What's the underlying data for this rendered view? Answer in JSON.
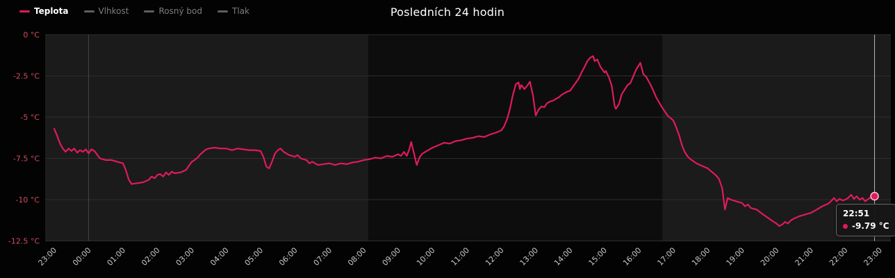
{
  "title": "Posledních 24 hodin",
  "legend": {
    "items": [
      {
        "label": "Teplota",
        "color": "#e01a5f",
        "active": true
      },
      {
        "label": "Vlhkost",
        "color": "#5f5f5f",
        "active": false
      },
      {
        "label": "Rosný bod",
        "color": "#5f5f5f",
        "active": false
      },
      {
        "label": "Tlak",
        "color": "#5f5f5f",
        "active": false
      }
    ]
  },
  "tooltip": {
    "time": "22:51",
    "value": "-9.79 °C"
  },
  "colors": {
    "series": "#e01a5f",
    "y_label": "#d14b5f",
    "x_label": "#c9c9c9",
    "grid": "#2e2e2e",
    "midnight_line": "#444444",
    "crosshair": "#d6d6d6",
    "marker_rim": "#ffc2d4",
    "plot_background": "#0d0d0d",
    "plot_band": "#1b1b1b"
  },
  "chart_data": {
    "type": "line",
    "title": "Posledních 24 hodin",
    "xlabel": "",
    "ylabel": "°C",
    "ylim": [
      -12.5,
      0
    ],
    "x_range_hours": [
      -0.263,
      24.323
    ],
    "x_start_label_time": "23:00",
    "x_ticks": [
      "23:00",
      "00:00",
      "01:00",
      "02:00",
      "03:00",
      "04:00",
      "05:00",
      "06:00",
      "07:00",
      "08:00",
      "09:00",
      "10:00",
      "11:00",
      "12:00",
      "13:00",
      "14:00",
      "15:00",
      "16:00",
      "17:00",
      "18:00",
      "19:00",
      "20:00",
      "21:00",
      "22:00",
      "23:00"
    ],
    "y_ticks": [
      {
        "value": 0,
        "label": "0 °C"
      },
      {
        "value": -2.5,
        "label": "-2.5 °C"
      },
      {
        "value": -5,
        "label": "-5 °C"
      },
      {
        "value": -7.5,
        "label": "-7.5 °C"
      },
      {
        "value": -10,
        "label": "-10 °C"
      },
      {
        "value": -12.5,
        "label": "-12.5 °C"
      }
    ],
    "plot_bands": [
      {
        "from": -0.263,
        "to": 9.13
      },
      {
        "from": 17.68,
        "to": 24.323
      }
    ],
    "midnight_gridline_hour": 1,
    "crosshair_hour": 23.85,
    "marker": {
      "hour": 23.85,
      "value": -9.79
    },
    "series": [
      {
        "name": "Teplota",
        "points": [
          [
            0.0,
            -5.7
          ],
          [
            0.08,
            -6.1
          ],
          [
            0.17,
            -6.6
          ],
          [
            0.25,
            -6.9
          ],
          [
            0.33,
            -7.1
          ],
          [
            0.42,
            -6.9
          ],
          [
            0.5,
            -7.05
          ],
          [
            0.58,
            -6.9
          ],
          [
            0.67,
            -7.15
          ],
          [
            0.75,
            -7.0
          ],
          [
            0.83,
            -7.1
          ],
          [
            0.92,
            -6.95
          ],
          [
            1.0,
            -7.2
          ],
          [
            1.08,
            -6.95
          ],
          [
            1.17,
            -7.05
          ],
          [
            1.33,
            -7.5
          ],
          [
            1.5,
            -7.6
          ],
          [
            1.67,
            -7.6
          ],
          [
            1.83,
            -7.7
          ],
          [
            2.0,
            -7.8
          ],
          [
            2.08,
            -8.2
          ],
          [
            2.17,
            -8.8
          ],
          [
            2.25,
            -9.05
          ],
          [
            2.42,
            -9.0
          ],
          [
            2.58,
            -8.95
          ],
          [
            2.75,
            -8.8
          ],
          [
            2.83,
            -8.6
          ],
          [
            2.92,
            -8.7
          ],
          [
            3.0,
            -8.5
          ],
          [
            3.08,
            -8.45
          ],
          [
            3.17,
            -8.6
          ],
          [
            3.25,
            -8.35
          ],
          [
            3.33,
            -8.5
          ],
          [
            3.42,
            -8.3
          ],
          [
            3.5,
            -8.4
          ],
          [
            3.67,
            -8.35
          ],
          [
            3.83,
            -8.2
          ],
          [
            4.0,
            -7.7
          ],
          [
            4.08,
            -7.6
          ],
          [
            4.17,
            -7.45
          ],
          [
            4.25,
            -7.25
          ],
          [
            4.33,
            -7.1
          ],
          [
            4.42,
            -6.95
          ],
          [
            4.5,
            -6.9
          ],
          [
            4.67,
            -6.85
          ],
          [
            4.83,
            -6.9
          ],
          [
            5.0,
            -6.9
          ],
          [
            5.17,
            -7.0
          ],
          [
            5.33,
            -6.9
          ],
          [
            5.5,
            -6.95
          ],
          [
            5.67,
            -7.0
          ],
          [
            5.83,
            -7.0
          ],
          [
            6.0,
            -7.05
          ],
          [
            6.08,
            -7.4
          ],
          [
            6.17,
            -8.0
          ],
          [
            6.25,
            -8.1
          ],
          [
            6.33,
            -7.7
          ],
          [
            6.42,
            -7.2
          ],
          [
            6.5,
            -7.0
          ],
          [
            6.58,
            -6.9
          ],
          [
            6.67,
            -7.1
          ],
          [
            6.83,
            -7.3
          ],
          [
            7.0,
            -7.4
          ],
          [
            7.08,
            -7.3
          ],
          [
            7.17,
            -7.5
          ],
          [
            7.33,
            -7.6
          ],
          [
            7.42,
            -7.8
          ],
          [
            7.5,
            -7.7
          ],
          [
            7.67,
            -7.9
          ],
          [
            7.83,
            -7.85
          ],
          [
            8.0,
            -7.8
          ],
          [
            8.17,
            -7.9
          ],
          [
            8.33,
            -7.8
          ],
          [
            8.5,
            -7.85
          ],
          [
            8.67,
            -7.75
          ],
          [
            8.83,
            -7.7
          ],
          [
            9.0,
            -7.6
          ],
          [
            9.17,
            -7.55
          ],
          [
            9.33,
            -7.45
          ],
          [
            9.5,
            -7.5
          ],
          [
            9.67,
            -7.35
          ],
          [
            9.83,
            -7.4
          ],
          [
            10.0,
            -7.25
          ],
          [
            10.08,
            -7.35
          ],
          [
            10.17,
            -7.1
          ],
          [
            10.25,
            -7.35
          ],
          [
            10.33,
            -6.9
          ],
          [
            10.38,
            -6.5
          ],
          [
            10.46,
            -7.2
          ],
          [
            10.54,
            -7.9
          ],
          [
            10.63,
            -7.4
          ],
          [
            10.71,
            -7.2
          ],
          [
            10.83,
            -7.05
          ],
          [
            11.0,
            -6.85
          ],
          [
            11.17,
            -6.7
          ],
          [
            11.33,
            -6.55
          ],
          [
            11.5,
            -6.6
          ],
          [
            11.67,
            -6.45
          ],
          [
            11.83,
            -6.4
          ],
          [
            12.0,
            -6.3
          ],
          [
            12.17,
            -6.25
          ],
          [
            12.33,
            -6.15
          ],
          [
            12.5,
            -6.2
          ],
          [
            12.67,
            -6.05
          ],
          [
            12.83,
            -5.95
          ],
          [
            13.0,
            -5.8
          ],
          [
            13.08,
            -5.55
          ],
          [
            13.17,
            -5.1
          ],
          [
            13.25,
            -4.5
          ],
          [
            13.33,
            -3.7
          ],
          [
            13.42,
            -3.0
          ],
          [
            13.5,
            -2.9
          ],
          [
            13.54,
            -3.3
          ],
          [
            13.58,
            -3.05
          ],
          [
            13.67,
            -3.3
          ],
          [
            13.75,
            -3.1
          ],
          [
            13.83,
            -2.85
          ],
          [
            13.92,
            -3.7
          ],
          [
            14.0,
            -4.9
          ],
          [
            14.08,
            -4.55
          ],
          [
            14.17,
            -4.35
          ],
          [
            14.25,
            -4.4
          ],
          [
            14.33,
            -4.15
          ],
          [
            14.42,
            -4.05
          ],
          [
            14.5,
            -4.0
          ],
          [
            14.58,
            -3.9
          ],
          [
            14.67,
            -3.8
          ],
          [
            14.75,
            -3.65
          ],
          [
            14.83,
            -3.55
          ],
          [
            14.92,
            -3.45
          ],
          [
            15.0,
            -3.4
          ],
          [
            15.08,
            -3.15
          ],
          [
            15.17,
            -2.9
          ],
          [
            15.25,
            -2.65
          ],
          [
            15.33,
            -2.3
          ],
          [
            15.42,
            -1.95
          ],
          [
            15.5,
            -1.6
          ],
          [
            15.58,
            -1.4
          ],
          [
            15.67,
            -1.3
          ],
          [
            15.71,
            -1.6
          ],
          [
            15.79,
            -1.5
          ],
          [
            15.88,
            -1.95
          ],
          [
            16.0,
            -2.3
          ],
          [
            16.04,
            -2.2
          ],
          [
            16.13,
            -2.6
          ],
          [
            16.21,
            -3.1
          ],
          [
            16.29,
            -4.3
          ],
          [
            16.33,
            -4.5
          ],
          [
            16.42,
            -4.2
          ],
          [
            16.5,
            -3.6
          ],
          [
            16.58,
            -3.35
          ],
          [
            16.67,
            -3.05
          ],
          [
            16.75,
            -2.95
          ],
          [
            16.83,
            -2.55
          ],
          [
            16.92,
            -2.1
          ],
          [
            17.0,
            -1.85
          ],
          [
            17.04,
            -1.7
          ],
          [
            17.13,
            -2.4
          ],
          [
            17.21,
            -2.55
          ],
          [
            17.33,
            -3.0
          ],
          [
            17.42,
            -3.4
          ],
          [
            17.5,
            -3.8
          ],
          [
            17.67,
            -4.4
          ],
          [
            17.83,
            -4.9
          ],
          [
            18.0,
            -5.2
          ],
          [
            18.08,
            -5.6
          ],
          [
            18.17,
            -6.1
          ],
          [
            18.25,
            -6.7
          ],
          [
            18.33,
            -7.1
          ],
          [
            18.42,
            -7.4
          ],
          [
            18.5,
            -7.55
          ],
          [
            18.67,
            -7.8
          ],
          [
            18.83,
            -7.95
          ],
          [
            19.0,
            -8.1
          ],
          [
            19.08,
            -8.25
          ],
          [
            19.17,
            -8.4
          ],
          [
            19.25,
            -8.55
          ],
          [
            19.33,
            -8.75
          ],
          [
            19.42,
            -9.3
          ],
          [
            19.5,
            -10.6
          ],
          [
            19.58,
            -9.9
          ],
          [
            19.67,
            -10.0
          ],
          [
            19.83,
            -10.1
          ],
          [
            20.0,
            -10.2
          ],
          [
            20.08,
            -10.4
          ],
          [
            20.17,
            -10.3
          ],
          [
            20.25,
            -10.5
          ],
          [
            20.42,
            -10.6
          ],
          [
            20.58,
            -10.85
          ],
          [
            20.75,
            -11.1
          ],
          [
            20.92,
            -11.35
          ],
          [
            21.0,
            -11.45
          ],
          [
            21.08,
            -11.6
          ],
          [
            21.17,
            -11.5
          ],
          [
            21.25,
            -11.35
          ],
          [
            21.33,
            -11.45
          ],
          [
            21.42,
            -11.25
          ],
          [
            21.5,
            -11.15
          ],
          [
            21.67,
            -11.0
          ],
          [
            21.83,
            -10.9
          ],
          [
            22.0,
            -10.8
          ],
          [
            22.17,
            -10.6
          ],
          [
            22.33,
            -10.4
          ],
          [
            22.5,
            -10.25
          ],
          [
            22.58,
            -10.1
          ],
          [
            22.67,
            -9.9
          ],
          [
            22.75,
            -10.1
          ],
          [
            22.83,
            -9.95
          ],
          [
            22.92,
            -10.05
          ],
          [
            23.0,
            -10.0
          ],
          [
            23.08,
            -9.9
          ],
          [
            23.17,
            -9.7
          ],
          [
            23.25,
            -9.95
          ],
          [
            23.33,
            -9.8
          ],
          [
            23.42,
            -10.0
          ],
          [
            23.5,
            -9.9
          ],
          [
            23.58,
            -10.1
          ],
          [
            23.67,
            -9.95
          ],
          [
            23.75,
            -9.85
          ],
          [
            23.85,
            -9.79
          ]
        ]
      }
    ]
  }
}
